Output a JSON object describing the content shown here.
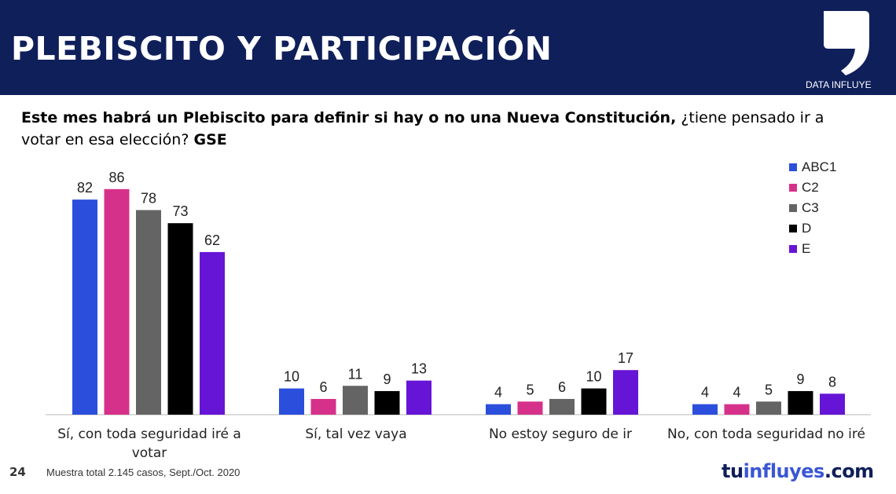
{
  "header": {
    "title": "PLEBISCITO Y PARTICIPACIÓN",
    "brand_label": "DATA INFLUYE",
    "logo_icon": "comma-logo-icon",
    "background": "#0f1f5a"
  },
  "question": {
    "part1": "Este mes habrá un Plebiscito para definir si hay o no una Nueva Constitución,",
    "part2": " ¿tiene pensado ir a votar en esa elección? ",
    "part3": "GSE"
  },
  "footer": {
    "page_number": "24",
    "note": "Muestra total 2.145 casos,  Sept./Oct. 2020",
    "site_prefix": "tu",
    "site_accent": "influyes",
    "site_suffix": ".com"
  },
  "chart_data": {
    "type": "bar",
    "categories": [
      [
        "Sí, con toda seguridad iré a",
        "votar"
      ],
      [
        "Sí, tal vez vaya"
      ],
      [
        "No estoy seguro de ir"
      ],
      [
        "No, con toda seguridad no iré"
      ]
    ],
    "series": [
      {
        "name": "ABC1",
        "color": "#2b4fdc",
        "values": [
          82,
          10,
          4,
          4
        ]
      },
      {
        "name": "C2",
        "color": "#d6318a",
        "values": [
          86,
          6,
          5,
          4
        ]
      },
      {
        "name": "C3",
        "color": "#646464",
        "values": [
          78,
          11,
          6,
          5
        ]
      },
      {
        "name": "D",
        "color": "#000000",
        "values": [
          73,
          9,
          10,
          9
        ]
      },
      {
        "name": "E",
        "color": "#6615d6",
        "values": [
          62,
          13,
          17,
          8
        ]
      }
    ],
    "data_labels": true,
    "legend_position": "top-right",
    "grid": false,
    "ylim": [
      0,
      90
    ]
  }
}
